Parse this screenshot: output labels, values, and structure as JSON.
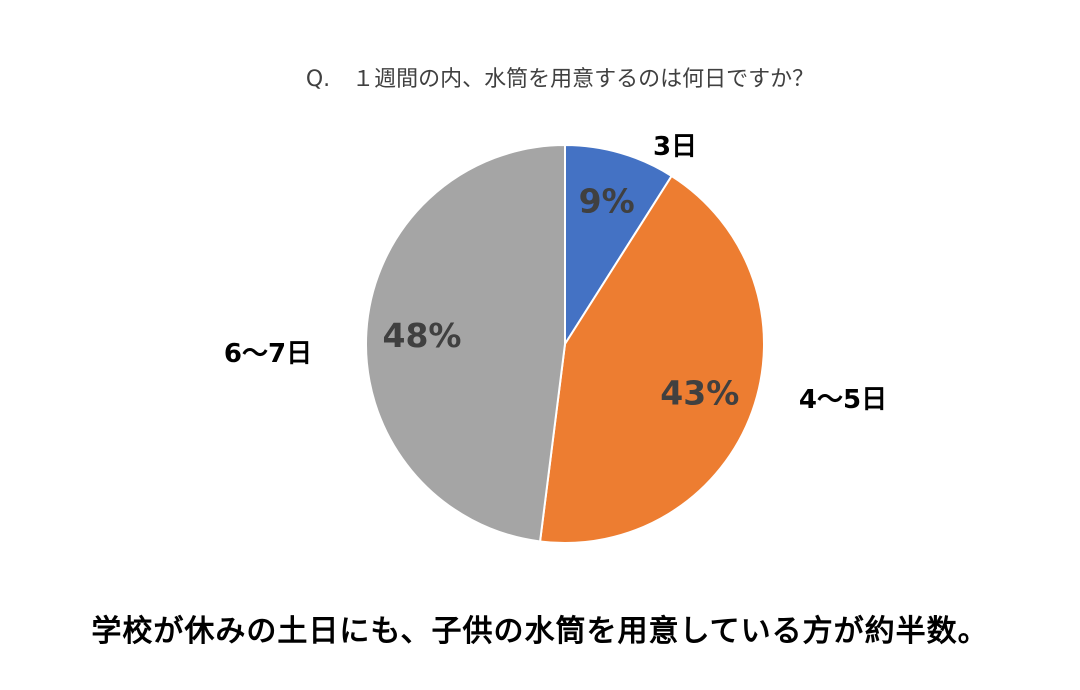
{
  "chart_data": {
    "type": "pie",
    "title": "Q.　１週間の内、水筒を用意するのは何日ですか？",
    "categories": [
      "3日",
      "4〜5日",
      "6〜7日"
    ],
    "values": [
      9,
      43,
      48
    ],
    "value_labels": [
      "9%",
      "43%",
      "48%"
    ],
    "colors": [
      "#4472C4",
      "#ED7D31",
      "#A5A5A5"
    ],
    "start_angle_deg": 0,
    "direction": "clockwise",
    "legend": "none"
  },
  "caption": "学校が休みの土日にも、子供の水筒を用意している方が約半数。"
}
